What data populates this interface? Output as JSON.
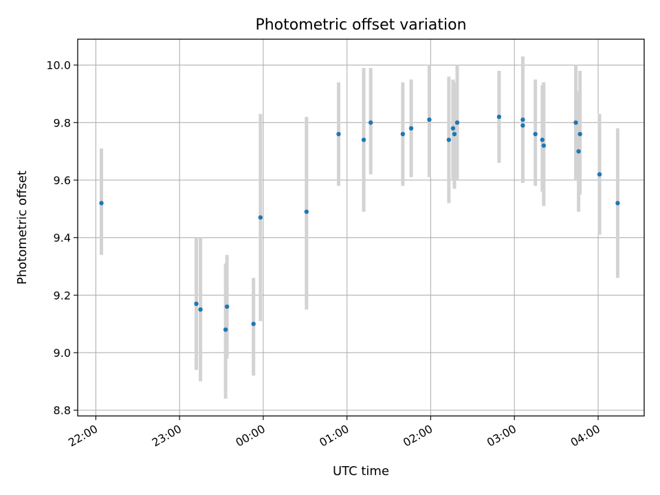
{
  "chart_data": {
    "type": "scatter",
    "title": "Photometric offset variation",
    "xlabel": "UTC time",
    "ylabel": "Photometric offset",
    "xlim": [
      "21:47",
      "04:33"
    ],
    "ylim": [
      8.78,
      10.09
    ],
    "xticks": [
      "22:00",
      "23:00",
      "00:00",
      "01:00",
      "02:00",
      "03:00",
      "04:00"
    ],
    "yticks": [
      8.8,
      9.0,
      9.2,
      9.4,
      9.6,
      9.8,
      10.0
    ],
    "ytick_labels": [
      "8.8",
      "9.0",
      "9.2",
      "9.4",
      "9.6",
      "9.8",
      "10.0"
    ],
    "grid": true,
    "point_color": "#1f77b4",
    "errorbar_color": "#d3d3d3",
    "points": [
      {
        "time": "22:04",
        "y": 9.52,
        "ylo": 9.34,
        "yhi": 9.71
      },
      {
        "time": "23:12",
        "y": 9.17,
        "ylo": 8.94,
        "yhi": 9.4
      },
      {
        "time": "23:15",
        "y": 9.15,
        "ylo": 8.9,
        "yhi": 9.4
      },
      {
        "time": "23:33",
        "y": 9.08,
        "ylo": 8.84,
        "yhi": 9.31
      },
      {
        "time": "23:34",
        "y": 9.16,
        "ylo": 8.98,
        "yhi": 9.34
      },
      {
        "time": "23:53",
        "y": 9.1,
        "ylo": 8.92,
        "yhi": 9.26
      },
      {
        "time": "23:58",
        "y": 9.47,
        "ylo": 9.11,
        "yhi": 9.83
      },
      {
        "time": "00:31",
        "y": 9.49,
        "ylo": 9.15,
        "yhi": 9.82
      },
      {
        "time": "00:54",
        "y": 9.76,
        "ylo": 9.58,
        "yhi": 9.94
      },
      {
        "time": "01:12",
        "y": 9.74,
        "ylo": 9.49,
        "yhi": 9.99
      },
      {
        "time": "01:17",
        "y": 9.8,
        "ylo": 9.62,
        "yhi": 9.99
      },
      {
        "time": "01:40",
        "y": 9.76,
        "ylo": 9.58,
        "yhi": 9.94
      },
      {
        "time": "01:46",
        "y": 9.78,
        "ylo": 9.61,
        "yhi": 9.95
      },
      {
        "time": "01:59",
        "y": 9.81,
        "ylo": 9.61,
        "yhi": 10.0
      },
      {
        "time": "02:13",
        "y": 9.74,
        "ylo": 9.52,
        "yhi": 9.96
      },
      {
        "time": "02:16",
        "y": 9.78,
        "ylo": 9.6,
        "yhi": 9.95
      },
      {
        "time": "02:17",
        "y": 9.76,
        "ylo": 9.57,
        "yhi": 9.94
      },
      {
        "time": "02:19",
        "y": 9.8,
        "ylo": 9.6,
        "yhi": 10.0
      },
      {
        "time": "02:49",
        "y": 9.82,
        "ylo": 9.66,
        "yhi": 9.98
      },
      {
        "time": "03:06",
        "y": 9.81,
        "ylo": 9.6,
        "yhi": 10.03
      },
      {
        "time": "03:06",
        "y": 9.79,
        "ylo": 9.59,
        "yhi": 10.0
      },
      {
        "time": "03:15",
        "y": 9.76,
        "ylo": 9.58,
        "yhi": 9.95
      },
      {
        "time": "03:20",
        "y": 9.74,
        "ylo": 9.56,
        "yhi": 9.93
      },
      {
        "time": "03:21",
        "y": 9.72,
        "ylo": 9.51,
        "yhi": 9.94
      },
      {
        "time": "03:44",
        "y": 9.8,
        "ylo": 9.6,
        "yhi": 10.0
      },
      {
        "time": "03:46",
        "y": 9.7,
        "ylo": 9.49,
        "yhi": 9.91
      },
      {
        "time": "03:47",
        "y": 9.76,
        "ylo": 9.55,
        "yhi": 9.98
      },
      {
        "time": "04:01",
        "y": 9.62,
        "ylo": 9.41,
        "yhi": 9.83
      },
      {
        "time": "04:14",
        "y": 9.52,
        "ylo": 9.26,
        "yhi": 9.78
      }
    ]
  }
}
